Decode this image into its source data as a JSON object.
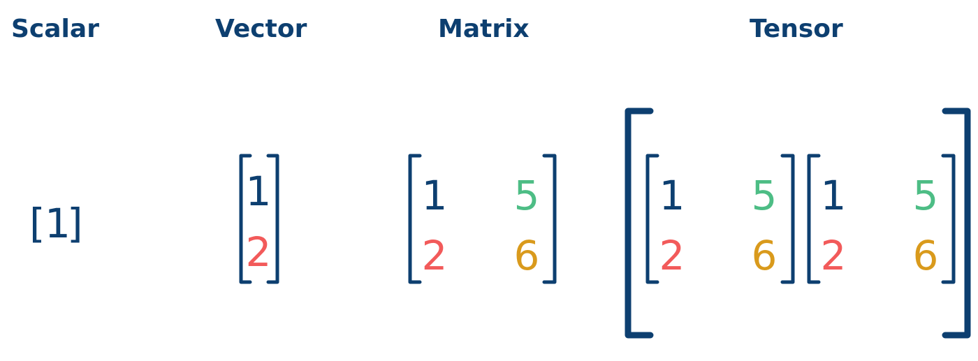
{
  "headings": {
    "scalar": "Scalar",
    "vector": "Vector",
    "matrix": "Matrix",
    "tensor": "Tensor"
  },
  "scalar": {
    "open_bracket": "[",
    "value": "1",
    "close_bracket": "]"
  },
  "vector": {
    "values": [
      "1",
      "2"
    ]
  },
  "matrix": {
    "rows": [
      [
        "1",
        "5"
      ],
      [
        "2",
        "6"
      ]
    ]
  },
  "tensor": {
    "slices": [
      {
        "rows": [
          [
            "1",
            "5"
          ],
          [
            "2",
            "6"
          ]
        ]
      },
      {
        "rows": [
          [
            "1",
            "5"
          ],
          [
            "2",
            "6"
          ]
        ]
      }
    ]
  },
  "colors": {
    "navy": "#0d3f70",
    "red": "#f25a5a",
    "green": "#4dbd85",
    "gold": "#d99a1c"
  }
}
